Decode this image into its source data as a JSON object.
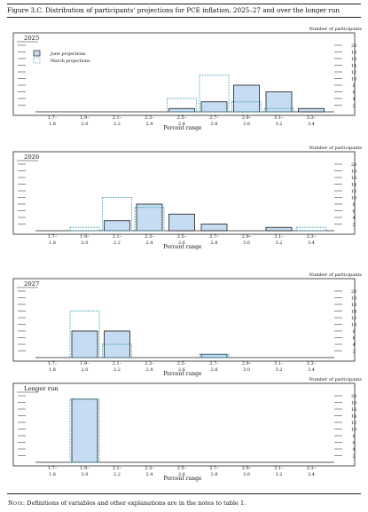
{
  "figure": {
    "title": "Figure 3.C. Distribution of participants' projections for PCE inflation, 2025–27 and over the longer run",
    "note_label": "Note:",
    "note_text": " Definitions of variables and other explanations are in the notes to table 1."
  },
  "colors": {
    "june_fill": "#c5dcf3",
    "june_stroke": "#1b1b1b",
    "march_stroke": "#4aa3b8"
  },
  "chart_data": [
    {
      "type": "bar",
      "panel": "2025",
      "categories": [
        "1.7–\n1.8",
        "1.9–\n2.0",
        "2.1–\n2.2",
        "2.3–\n2.4",
        "2.5–\n2.6",
        "2.7–\n2.8",
        "2.9–\n3.0",
        "3.1–\n3.2",
        "3.3–\n3.4"
      ],
      "series": [
        {
          "name": "June projections",
          "values": [
            0,
            0,
            0,
            0,
            1,
            3,
            8,
            6,
            1
          ]
        },
        {
          "name": "March projections",
          "values": [
            0,
            0,
            0,
            0,
            4,
            11,
            3,
            1,
            0
          ]
        }
      ],
      "xlabel": "Percent range",
      "ylabel": "Number of participants",
      "yticks": [
        2,
        4,
        6,
        8,
        10,
        12,
        14,
        16,
        18,
        20
      ],
      "ylim": [
        0,
        20
      ],
      "legend": "top-left"
    },
    {
      "type": "bar",
      "panel": "2026",
      "categories": [
        "1.7–\n1.8",
        "1.9–\n2.0",
        "2.1–\n2.2",
        "2.3–\n2.4",
        "2.5–\n2.6",
        "2.7–\n2.8",
        "2.9–\n3.0",
        "3.1–\n3.2",
        "3.3–\n3.4"
      ],
      "series": [
        {
          "name": "June projections",
          "values": [
            0,
            0,
            3,
            8,
            5,
            2,
            0,
            1,
            0
          ]
        },
        {
          "name": "March projections",
          "values": [
            0,
            1,
            10,
            7,
            0,
            0,
            0,
            0,
            1
          ]
        }
      ],
      "xlabel": "Percent range",
      "ylabel": "Number of participants",
      "yticks": [
        2,
        4,
        6,
        8,
        10,
        12,
        14,
        16,
        18,
        20
      ],
      "ylim": [
        0,
        20
      ]
    },
    {
      "type": "bar",
      "panel": "2027",
      "categories": [
        "1.7–\n1.8",
        "1.9–\n2.0",
        "2.1–\n2.2",
        "2.3–\n2.4",
        "2.5–\n2.6",
        "2.7–\n2.8",
        "2.9–\n3.0",
        "3.1–\n3.2",
        "3.3–\n3.4"
      ],
      "series": [
        {
          "name": "June projections",
          "values": [
            0,
            8,
            8,
            0,
            0,
            1,
            0,
            0,
            0
          ]
        },
        {
          "name": "March projections",
          "values": [
            0,
            14,
            4,
            0,
            0,
            1,
            0,
            0,
            0
          ]
        }
      ],
      "xlabel": "Percent range",
      "ylabel": "Number of participants",
      "yticks": [
        2,
        4,
        6,
        8,
        10,
        12,
        14,
        16,
        18,
        20
      ],
      "ylim": [
        0,
        20
      ]
    },
    {
      "type": "bar",
      "panel": "Longer run",
      "categories": [
        "1.7–\n1.8",
        "1.9–\n2.0",
        "2.1–\n2.2",
        "2.3–\n2.4",
        "2.5–\n2.6",
        "2.7–\n2.8",
        "2.9–\n3.0",
        "3.1–\n3.2",
        "3.3–\n3.4"
      ],
      "series": [
        {
          "name": "June projections",
          "values": [
            0,
            19,
            0,
            0,
            0,
            0,
            0,
            0,
            0
          ]
        },
        {
          "name": "March projections",
          "values": [
            0,
            19,
            0,
            0,
            0,
            0,
            0,
            0,
            0
          ]
        }
      ],
      "xlabel": "Percent range",
      "ylabel": "Number of participants",
      "yticks": [
        2,
        4,
        6,
        8,
        10,
        12,
        14,
        16,
        18,
        20
      ],
      "ylim": [
        0,
        20
      ]
    }
  ]
}
